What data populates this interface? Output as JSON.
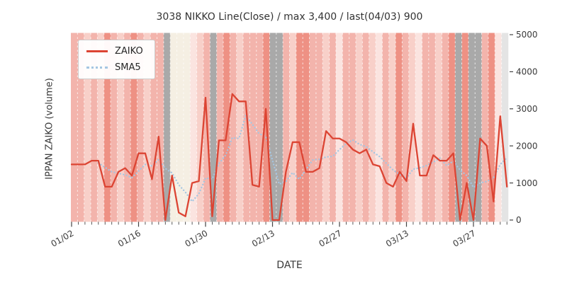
{
  "title": "3038 NIKKO Line(Close) / max 3,400 / last(04/03) 900",
  "axes": {
    "x_label": "DATE",
    "y_label": "IPPAN ZAIKO (volume)",
    "y_ticks": [
      "0",
      "1000",
      "2000",
      "3000",
      "4000",
      "5000"
    ],
    "x_tick_labels": [
      "01/02",
      "01/16",
      "01/30",
      "02/13",
      "02/27",
      "03/13",
      "03/27"
    ]
  },
  "legend": {
    "items": [
      {
        "label": "ZAIKO",
        "style": "solid",
        "color": "#dc4433"
      },
      {
        "label": "SMA5",
        "style": "dotted",
        "color": "#a5c6e2"
      }
    ]
  },
  "chart_data": {
    "type": "line",
    "title": "3038 NIKKO Line(Close) / max 3,400 / last(04/03) 900",
    "xlabel": "DATE",
    "ylabel": "IPPAN ZAIKO (volume)",
    "n_points": 66,
    "x_unit": "weekday trading sessions from 01/02 to 04/03",
    "x_tick_indices": [
      0,
      10,
      20,
      30,
      40,
      50,
      60
    ],
    "x_tick_labels": [
      "01/02",
      "01/16",
      "01/30",
      "02/13",
      "02/27",
      "03/13",
      "03/27"
    ],
    "y_ticks": [
      0,
      1000,
      2000,
      3000,
      4000,
      5000
    ],
    "ylim": [
      0,
      5000
    ],
    "grid": "white dashed vertical line per trading day, no horizontal grid",
    "legend_position": "upper left",
    "max_value": 3400,
    "last_value": 900,
    "last_date": "04/03",
    "series": [
      {
        "name": "ZAIKO",
        "color": "#dc4433",
        "style": "solid",
        "values": [
          1500,
          1500,
          1500,
          1600,
          1600,
          900,
          900,
          1300,
          1400,
          1200,
          1800,
          1800,
          1100,
          2250,
          0,
          1200,
          200,
          100,
          1000,
          1050,
          3300,
          100,
          2150,
          2150,
          3400,
          3200,
          3200,
          950,
          900,
          3000,
          0,
          0,
          1300,
          2100,
          2100,
          1300,
          1300,
          1400,
          2400,
          2200,
          2200,
          2100,
          1900,
          1800,
          1900,
          1500,
          1450,
          1000,
          900,
          1300,
          1050,
          2600,
          1200,
          1200,
          1750,
          1600,
          1600,
          1800,
          0,
          1000,
          0,
          2200,
          2000,
          500,
          2800,
          900
        ]
      },
      {
        "name": "SMA5",
        "color": "#a5c6e2",
        "style": "dotted",
        "derived": "trailing 5-point moving average of ZAIKO, starts at 5th point"
      }
    ],
    "background_bands": {
      "codes": "mmlmlsmlmsmlmmgcccxlmgmsmlmmmsggmlssmmlmxmmlmlxmlsmlxmmlmsgsggmsxd",
      "palette": {
        "m": "#f3b4ac",
        "l": "#f8d0c9",
        "x": "#fbe4e0",
        "s": "#ee9184",
        "c": "#f5efe3",
        "g": "#a9a9a9",
        "d": "#e4e4e4"
      }
    }
  },
  "colors": {
    "zaiko_line": "#dc4433",
    "sma5_line": "#a5c6e2",
    "text": "#3a3a3a",
    "tick": "#444444",
    "legend_border": "#cccccc",
    "background": "#ffffff"
  }
}
